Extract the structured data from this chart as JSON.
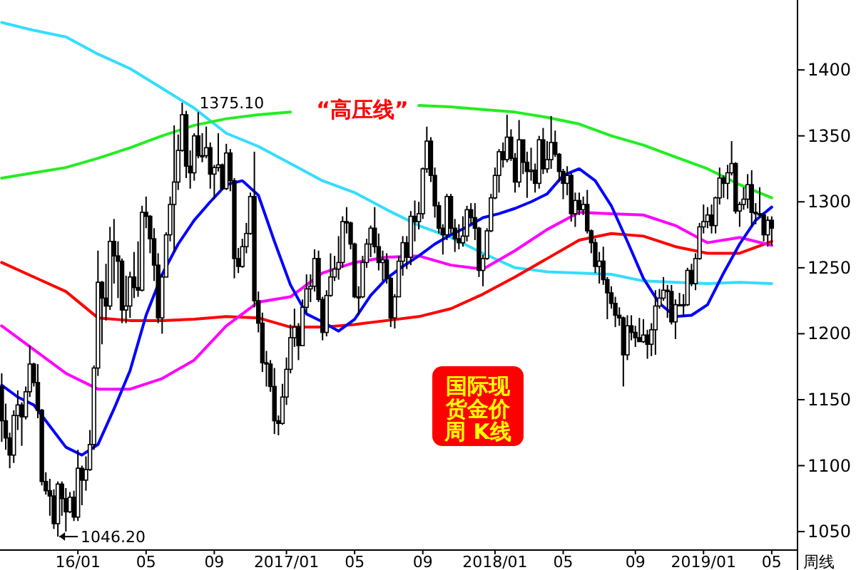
{
  "chart_data": {
    "type": "candlestick",
    "title": "国际现货金价周 K线",
    "annotations": [
      {
        "text": "1375.10",
        "x": "2016-07-08",
        "y": 1375.1
      },
      {
        "text": "1046.20",
        "x": "2015-12-04",
        "y": 1046.2
      },
      "“高压线”",
      "周线"
    ],
    "x": [
      "2015-08-28",
      "2015-09-04",
      "2015-09-11",
      "2015-09-18",
      "2015-09-25",
      "2015-10-02",
      "2015-10-09",
      "2015-10-16",
      "2015-10-23",
      "2015-10-30",
      "2015-11-06",
      "2015-11-13",
      "2015-11-20",
      "2015-11-27",
      "2015-12-04",
      "2015-12-11",
      "2015-12-18",
      "2015-12-25",
      "2016-01-01",
      "2016-01-08",
      "2016-01-15",
      "2016-01-22",
      "2016-01-29",
      "2016-02-05",
      "2016-02-12",
      "2016-02-19",
      "2016-02-26",
      "2016-03-04",
      "2016-03-11",
      "2016-03-18",
      "2016-03-25",
      "2016-04-01",
      "2016-04-08",
      "2016-04-15",
      "2016-04-22",
      "2016-04-29",
      "2016-05-06",
      "2016-05-13",
      "2016-05-20",
      "2016-05-27",
      "2016-06-03",
      "2016-06-10",
      "2016-06-17",
      "2016-06-24",
      "2016-07-01",
      "2016-07-08",
      "2016-07-15",
      "2016-07-22",
      "2016-07-29",
      "2016-08-05",
      "2016-08-12",
      "2016-08-19",
      "2016-08-26",
      "2016-09-02",
      "2016-09-09",
      "2016-09-16",
      "2016-09-23",
      "2016-09-30",
      "2016-10-07",
      "2016-10-14",
      "2016-10-21",
      "2016-10-28",
      "2016-11-04",
      "2016-11-11",
      "2016-11-18",
      "2016-11-25",
      "2016-12-02",
      "2016-12-09",
      "2016-12-16",
      "2016-12-23",
      "2016-12-30",
      "2017-01-06",
      "2017-01-13",
      "2017-01-20",
      "2017-01-27",
      "2017-02-03",
      "2017-02-10",
      "2017-02-17",
      "2017-02-24",
      "2017-03-03",
      "2017-03-10",
      "2017-03-17",
      "2017-03-24",
      "2017-03-31",
      "2017-04-07",
      "2017-04-14",
      "2017-04-21",
      "2017-04-28",
      "2017-05-05",
      "2017-05-12",
      "2017-05-19",
      "2017-05-26",
      "2017-06-02",
      "2017-06-09",
      "2017-06-16",
      "2017-06-23",
      "2017-06-30",
      "2017-07-07",
      "2017-07-14",
      "2017-07-21",
      "2017-07-28",
      "2017-08-04",
      "2017-08-11",
      "2017-08-18",
      "2017-08-25",
      "2017-09-01",
      "2017-09-08",
      "2017-09-15",
      "2017-09-22",
      "2017-09-29",
      "2017-10-06",
      "2017-10-13",
      "2017-10-20",
      "2017-10-27",
      "2017-11-03",
      "2017-11-10",
      "2017-11-17",
      "2017-11-24",
      "2017-12-01",
      "2017-12-08",
      "2017-12-15",
      "2017-12-22",
      "2017-12-29",
      "2018-01-05",
      "2018-01-12",
      "2018-01-19",
      "2018-01-26",
      "2018-02-02",
      "2018-02-09",
      "2018-02-16",
      "2018-02-23",
      "2018-03-02",
      "2018-03-09",
      "2018-03-16",
      "2018-03-23",
      "2018-03-30",
      "2018-04-06",
      "2018-04-13",
      "2018-04-20",
      "2018-04-27",
      "2018-05-04",
      "2018-05-11",
      "2018-05-18",
      "2018-05-25",
      "2018-06-01",
      "2018-06-08",
      "2018-06-15",
      "2018-06-22",
      "2018-06-29",
      "2018-07-06",
      "2018-07-13",
      "2018-07-20",
      "2018-07-27",
      "2018-08-03",
      "2018-08-10",
      "2018-08-17",
      "2018-08-24",
      "2018-08-31",
      "2018-09-07",
      "2018-09-14",
      "2018-09-21",
      "2018-09-28",
      "2018-10-05",
      "2018-10-12",
      "2018-10-19",
      "2018-10-26",
      "2018-11-02",
      "2018-11-09",
      "2018-11-16",
      "2018-11-23",
      "2018-11-30",
      "2018-12-07",
      "2018-12-14",
      "2018-12-21",
      "2018-12-28",
      "2019-01-04",
      "2019-01-11",
      "2019-01-18",
      "2019-01-25",
      "2019-02-01",
      "2019-02-08",
      "2019-02-15",
      "2019-02-22",
      "2019-03-01",
      "2019-03-08",
      "2019-03-15",
      "2019-03-22",
      "2019-03-29",
      "2019-04-05",
      "2019-04-12",
      "2019-04-19",
      "2019-04-26",
      "2019-05-03"
    ],
    "ohlc": [
      [
        1160,
        1170,
        1118,
        1134
      ],
      [
        1134,
        1147,
        1112,
        1121
      ],
      [
        1121,
        1125,
        1098,
        1108
      ],
      [
        1108,
        1142,
        1102,
        1138
      ],
      [
        1138,
        1157,
        1127,
        1146
      ],
      [
        1146,
        1148,
        1115,
        1137
      ],
      [
        1137,
        1160,
        1135,
        1156
      ],
      [
        1156,
        1191,
        1152,
        1177
      ],
      [
        1177,
        1178,
        1160,
        1163
      ],
      [
        1163,
        1177,
        1136,
        1142
      ],
      [
        1142,
        1143,
        1085,
        1088
      ],
      [
        1088,
        1095,
        1078,
        1081
      ],
      [
        1081,
        1090,
        1062,
        1077
      ],
      [
        1077,
        1082,
        1052,
        1056
      ],
      [
        1056,
        1088,
        1046.2,
        1086
      ],
      [
        1086,
        1088,
        1062,
        1075
      ],
      [
        1075,
        1083,
        1050,
        1065
      ],
      [
        1065,
        1080,
        1064,
        1076
      ],
      [
        1076,
        1081,
        1058,
        1061
      ],
      [
        1061,
        1112,
        1058,
        1098
      ],
      [
        1098,
        1100,
        1070,
        1089
      ],
      [
        1089,
        1107,
        1081,
        1097
      ],
      [
        1097,
        1127,
        1096,
        1116
      ],
      [
        1116,
        1176,
        1112,
        1174
      ],
      [
        1174,
        1263,
        1168,
        1239
      ],
      [
        1239,
        1240,
        1192,
        1227
      ],
      [
        1227,
        1253,
        1210,
        1221
      ],
      [
        1221,
        1281,
        1218,
        1270
      ],
      [
        1270,
        1287,
        1238,
        1259
      ],
      [
        1259,
        1270,
        1227,
        1255
      ],
      [
        1255,
        1257,
        1208,
        1218
      ],
      [
        1218,
        1244,
        1208,
        1221
      ],
      [
        1221,
        1247,
        1212,
        1243
      ],
      [
        1243,
        1262,
        1227,
        1235
      ],
      [
        1235,
        1270,
        1228,
        1233
      ],
      [
        1233,
        1297,
        1232,
        1292
      ],
      [
        1292,
        1304,
        1280,
        1289
      ],
      [
        1289,
        1290,
        1261,
        1272
      ],
      [
        1272,
        1280,
        1240,
        1252
      ],
      [
        1252,
        1261,
        1208,
        1212
      ],
      [
        1212,
        1245,
        1200,
        1243
      ],
      [
        1243,
        1277,
        1243,
        1275
      ],
      [
        1275,
        1304,
        1270,
        1298
      ],
      [
        1298,
        1358,
        1262,
        1315
      ],
      [
        1315,
        1351,
        1309,
        1339
      ],
      [
        1339,
        1375.1,
        1338,
        1366
      ],
      [
        1366,
        1369,
        1318,
        1327
      ],
      [
        1327,
        1339,
        1310,
        1322
      ],
      [
        1322,
        1352,
        1316,
        1350
      ],
      [
        1350,
        1368,
        1333,
        1335
      ],
      [
        1335,
        1352,
        1330,
        1335
      ],
      [
        1335,
        1357,
        1333,
        1341
      ],
      [
        1341,
        1345,
        1310,
        1321
      ],
      [
        1321,
        1328,
        1302,
        1326
      ],
      [
        1326,
        1352,
        1323,
        1328
      ],
      [
        1328,
        1329,
        1309,
        1310
      ],
      [
        1310,
        1344,
        1309,
        1337
      ],
      [
        1337,
        1340,
        1308,
        1316
      ],
      [
        1316,
        1318,
        1242,
        1257
      ],
      [
        1257,
        1265,
        1246,
        1251
      ],
      [
        1251,
        1272,
        1250,
        1266
      ],
      [
        1266,
        1284,
        1261,
        1276
      ],
      [
        1276,
        1307,
        1275,
        1304
      ],
      [
        1304,
        1338,
        1220,
        1225
      ],
      [
        1225,
        1232,
        1201,
        1208
      ],
      [
        1208,
        1216,
        1171,
        1178
      ],
      [
        1178,
        1187,
        1160,
        1177
      ],
      [
        1177,
        1180,
        1156,
        1160
      ],
      [
        1160,
        1174,
        1124,
        1134
      ],
      [
        1134,
        1138,
        1123,
        1132
      ],
      [
        1132,
        1162,
        1131,
        1152
      ],
      [
        1152,
        1182,
        1146,
        1173
      ],
      [
        1173,
        1207,
        1170,
        1197
      ],
      [
        1197,
        1219,
        1190,
        1205
      ],
      [
        1205,
        1208,
        1180,
        1191
      ],
      [
        1191,
        1226,
        1191,
        1220
      ],
      [
        1220,
        1245,
        1216,
        1234
      ],
      [
        1234,
        1245,
        1224,
        1236
      ],
      [
        1236,
        1264,
        1232,
        1257
      ],
      [
        1257,
        1263,
        1224,
        1226
      ],
      [
        1226,
        1228,
        1195,
        1201
      ],
      [
        1201,
        1233,
        1198,
        1229
      ],
      [
        1229,
        1261,
        1228,
        1243
      ],
      [
        1243,
        1259,
        1240,
        1249
      ],
      [
        1249,
        1274,
        1241,
        1254
      ],
      [
        1254,
        1289,
        1250,
        1285
      ],
      [
        1285,
        1296,
        1276,
        1284
      ],
      [
        1284,
        1285,
        1264,
        1268
      ],
      [
        1268,
        1269,
        1227,
        1228
      ],
      [
        1228,
        1236,
        1214,
        1228
      ],
      [
        1228,
        1259,
        1227,
        1254
      ],
      [
        1254,
        1272,
        1250,
        1268
      ],
      [
        1268,
        1282,
        1258,
        1280
      ],
      [
        1280,
        1296,
        1261,
        1266
      ],
      [
        1266,
        1276,
        1248,
        1254
      ],
      [
        1254,
        1263,
        1240,
        1256
      ],
      [
        1256,
        1261,
        1238,
        1242
      ],
      [
        1242,
        1243,
        1205,
        1212
      ],
      [
        1212,
        1230,
        1204,
        1228
      ],
      [
        1228,
        1259,
        1228,
        1255
      ],
      [
        1255,
        1274,
        1244,
        1269
      ],
      [
        1269,
        1274,
        1249,
        1258
      ],
      [
        1258,
        1293,
        1252,
        1289
      ],
      [
        1289,
        1301,
        1270,
        1285
      ],
      [
        1285,
        1300,
        1279,
        1291
      ],
      [
        1291,
        1326,
        1287,
        1325
      ],
      [
        1325,
        1357,
        1322,
        1346
      ],
      [
        1346,
        1349,
        1315,
        1320
      ],
      [
        1320,
        1326,
        1288,
        1297
      ],
      [
        1297,
        1300,
        1276,
        1280
      ],
      [
        1280,
        1283,
        1260,
        1275
      ],
      [
        1275,
        1306,
        1271,
        1304
      ],
      [
        1304,
        1306,
        1276,
        1280
      ],
      [
        1280,
        1287,
        1262,
        1272
      ],
      [
        1272,
        1283,
        1264,
        1269
      ],
      [
        1269,
        1289,
        1266,
        1274
      ],
      [
        1274,
        1297,
        1270,
        1294
      ],
      [
        1294,
        1299,
        1283,
        1288
      ],
      [
        1288,
        1299,
        1271,
        1280
      ],
      [
        1280,
        1281,
        1243,
        1248
      ],
      [
        1248,
        1260,
        1236,
        1257
      ],
      [
        1257,
        1280,
        1256,
        1278
      ],
      [
        1278,
        1306,
        1277,
        1303
      ],
      [
        1303,
        1326,
        1302,
        1320
      ],
      [
        1320,
        1340,
        1307,
        1338
      ],
      [
        1338,
        1345,
        1326,
        1332
      ],
      [
        1332,
        1366,
        1330,
        1349
      ],
      [
        1349,
        1355,
        1331,
        1333
      ],
      [
        1333,
        1337,
        1307,
        1315
      ],
      [
        1315,
        1362,
        1311,
        1347
      ],
      [
        1347,
        1347,
        1321,
        1330
      ],
      [
        1330,
        1338,
        1303,
        1323
      ],
      [
        1323,
        1341,
        1316,
        1324
      ],
      [
        1324,
        1329,
        1307,
        1314
      ],
      [
        1314,
        1350,
        1310,
        1347
      ],
      [
        1347,
        1356,
        1321,
        1325
      ],
      [
        1325,
        1346,
        1322,
        1332
      ],
      [
        1332,
        1365,
        1325,
        1345
      ],
      [
        1345,
        1354,
        1334,
        1336
      ],
      [
        1336,
        1337,
        1315,
        1323
      ],
      [
        1323,
        1325,
        1302,
        1314
      ],
      [
        1314,
        1327,
        1305,
        1320
      ],
      [
        1320,
        1322,
        1285,
        1291
      ],
      [
        1291,
        1307,
        1281,
        1301
      ],
      [
        1301,
        1307,
        1290,
        1294
      ],
      [
        1294,
        1304,
        1290,
        1298
      ],
      [
        1298,
        1309,
        1276,
        1278
      ],
      [
        1278,
        1279,
        1261,
        1269
      ],
      [
        1269,
        1272,
        1246,
        1251
      ],
      [
        1251,
        1262,
        1238,
        1255
      ],
      [
        1255,
        1266,
        1237,
        1241
      ],
      [
        1241,
        1243,
        1211,
        1231
      ],
      [
        1231,
        1236,
        1219,
        1223
      ],
      [
        1223,
        1228,
        1205,
        1214
      ],
      [
        1214,
        1220,
        1206,
        1212
      ],
      [
        1212,
        1213,
        1160,
        1184
      ],
      [
        1184,
        1214,
        1180,
        1206
      ],
      [
        1206,
        1214,
        1195,
        1201
      ],
      [
        1201,
        1206,
        1190,
        1197
      ],
      [
        1197,
        1212,
        1194,
        1194
      ],
      [
        1194,
        1211,
        1193,
        1199
      ],
      [
        1199,
        1203,
        1181,
        1192
      ],
      [
        1192,
        1208,
        1183,
        1203
      ],
      [
        1203,
        1233,
        1184,
        1221
      ],
      [
        1221,
        1234,
        1219,
        1227
      ],
      [
        1227,
        1243,
        1225,
        1233
      ],
      [
        1233,
        1237,
        1212,
        1232
      ],
      [
        1232,
        1237,
        1207,
        1209
      ],
      [
        1209,
        1226,
        1196,
        1222
      ],
      [
        1222,
        1231,
        1221,
        1222
      ],
      [
        1222,
        1230,
        1213,
        1222
      ],
      [
        1222,
        1250,
        1221,
        1248
      ],
      [
        1248,
        1253,
        1236,
        1238
      ],
      [
        1238,
        1261,
        1233,
        1257
      ],
      [
        1257,
        1284,
        1256,
        1281
      ],
      [
        1281,
        1298,
        1276,
        1285
      ],
      [
        1285,
        1296,
        1280,
        1290
      ],
      [
        1290,
        1298,
        1276,
        1282
      ],
      [
        1282,
        1304,
        1276,
        1303
      ],
      [
        1303,
        1326,
        1298,
        1318
      ],
      [
        1318,
        1320,
        1303,
        1314
      ],
      [
        1314,
        1328,
        1302,
        1322
      ],
      [
        1322,
        1346,
        1320,
        1329
      ],
      [
        1329,
        1330,
        1291,
        1293
      ],
      [
        1293,
        1300,
        1281,
        1298
      ],
      [
        1298,
        1311,
        1294,
        1302
      ],
      [
        1302,
        1321,
        1295,
        1313
      ],
      [
        1313,
        1324,
        1281,
        1292
      ],
      [
        1292,
        1299,
        1283,
        1291
      ],
      [
        1291,
        1311,
        1288,
        1290
      ],
      [
        1290,
        1292,
        1270,
        1275
      ],
      [
        1275,
        1289,
        1266,
        1286
      ],
      [
        1286,
        1289,
        1267,
        1280
      ]
    ],
    "series": [
      {
        "type": "line",
        "color": "#33ddff",
        "x": [
          "2015-08-28",
          "2015-10-23",
          "2015-12-18",
          "2016-02-12",
          "2016-04-08",
          "2016-06-03",
          "2016-07-29",
          "2016-09-23",
          "2016-11-18",
          "2017-01-13",
          "2017-03-10",
          "2017-05-05",
          "2017-06-30",
          "2017-08-25",
          "2017-10-20",
          "2017-12-15",
          "2018-02-09",
          "2018-04-06",
          "2018-06-01",
          "2018-07-27",
          "2018-09-21",
          "2018-11-16",
          "2019-01-11",
          "2019-03-08",
          "2019-05-03"
        ],
        "values": [
          1436,
          1430,
          1425,
          1412,
          1401,
          1386,
          1371,
          1352,
          1342,
          1329,
          1316,
          1307,
          1294,
          1282,
          1273,
          1261,
          1250,
          1247,
          1246,
          1245,
          1240,
          1239,
          1238,
          1239,
          1238
        ]
      },
      {
        "type": "line",
        "color": "#22ee22",
        "x": [
          "2015-08-28",
          "2015-10-23",
          "2015-12-18",
          "2016-02-12",
          "2016-04-08",
          "2016-06-03",
          "2016-07-29",
          "2016-09-23",
          "2016-11-18",
          "2017-01-13",
          "2017-03-10",
          "2017-05-05",
          "2017-06-30",
          "2017-08-25",
          "2017-10-20",
          "2017-12-15",
          "2018-02-09",
          "2018-04-06",
          "2018-06-01",
          "2018-07-27",
          "2018-09-21",
          "2018-11-16",
          "2019-01-11",
          "2019-03-08",
          "2019-05-03"
        ],
        "values": [
          1318,
          1322,
          1326,
          1333,
          1341,
          1350,
          1358,
          1363,
          1366,
          1368,
          null,
          null,
          null,
          1373,
          1372,
          1370,
          1368,
          1364,
          1359,
          1350,
          1343,
          1334,
          1325,
          1313,
          1303
        ]
      },
      {
        "type": "line",
        "color": "#ff0000",
        "x": [
          "2015-08-28",
          "2015-10-23",
          "2015-12-18",
          "2016-02-12",
          "2016-04-08",
          "2016-06-03",
          "2016-07-29",
          "2016-09-23",
          "2016-11-18",
          "2017-01-13",
          "2017-03-10",
          "2017-05-05",
          "2017-06-30",
          "2017-08-25",
          "2017-10-20",
          "2017-12-15",
          "2018-02-09",
          "2018-04-06",
          "2018-06-01",
          "2018-07-27",
          "2018-09-21",
          "2018-11-16",
          "2019-01-11",
          "2019-03-08",
          "2019-05-03"
        ],
        "values": [
          1254,
          1243,
          1232,
          1212,
          1210,
          1210,
          1211,
          1213,
          1212,
          1205,
          1205,
          1207,
          1210,
          1213,
          1219,
          1230,
          1243,
          1257,
          1271,
          1276,
          1274,
          1266,
          1261,
          1261,
          1270
        ]
      },
      {
        "type": "line",
        "color": "#ff00ff",
        "x": [
          "2015-08-28",
          "2015-10-23",
          "2015-12-18",
          "2016-02-12",
          "2016-04-08",
          "2016-06-03",
          "2016-07-29",
          "2016-09-23",
          "2016-11-18",
          "2017-01-13",
          "2017-03-10",
          "2017-05-05",
          "2017-06-30",
          "2017-08-25",
          "2017-10-20",
          "2017-12-15",
          "2018-02-09",
          "2018-04-06",
          "2018-06-01",
          "2018-07-27",
          "2018-09-21",
          "2018-11-16",
          "2019-01-11",
          "2019-03-08",
          "2019-05-03"
        ],
        "values": [
          1206,
          1188,
          1170,
          1158,
          1158,
          1166,
          1180,
          1206,
          1224,
          1228,
          1246,
          1254,
          1258,
          1259,
          1252,
          1249,
          1263,
          1279,
          1292,
          1291,
          1290,
          1282,
          1269,
          1273,
          1267
        ]
      },
      {
        "type": "line",
        "color": "#0000ff",
        "x": [
          "2015-08-28",
          "2015-09-25",
          "2015-10-23",
          "2015-11-20",
          "2015-12-18",
          "2016-01-15",
          "2016-02-12",
          "2016-03-11",
          "2016-04-08",
          "2016-05-06",
          "2016-06-03",
          "2016-07-01",
          "2016-07-29",
          "2016-08-26",
          "2016-09-23",
          "2016-10-21",
          "2016-11-18",
          "2016-12-16",
          "2017-01-13",
          "2017-02-10",
          "2017-03-10",
          "2017-04-07",
          "2017-05-05",
          "2017-06-02",
          "2017-06-30",
          "2017-07-28",
          "2017-08-25",
          "2017-09-22",
          "2017-10-20",
          "2017-11-17",
          "2017-12-15",
          "2018-01-12",
          "2018-02-09",
          "2018-03-09",
          "2018-04-06",
          "2018-05-04",
          "2018-06-01",
          "2018-06-29",
          "2018-07-27",
          "2018-08-24",
          "2018-09-21",
          "2018-10-19",
          "2018-11-16",
          "2018-12-14",
          "2019-01-11",
          "2019-02-08",
          "2019-03-08",
          "2019-04-05",
          "2019-05-03"
        ],
        "values": [
          1161,
          1152,
          1146,
          1130,
          1114,
          1108,
          1116,
          1143,
          1172,
          1214,
          1245,
          1268,
          1286,
          1300,
          1313,
          1316,
          1305,
          1270,
          1237,
          1215,
          1209,
          1202,
          1211,
          1229,
          1242,
          1251,
          1259,
          1268,
          1275,
          1281,
          1288,
          1291,
          1295,
          1300,
          1306,
          1320,
          1325,
          1316,
          1297,
          1270,
          1242,
          1223,
          1213,
          1214,
          1222,
          1246,
          1268,
          1286,
          1296
        ]
      }
    ],
    "xlim": [
      "2015-08-25",
      "2019-06-17"
    ],
    "xticks": [
      {
        "value": "2016-01-08",
        "label": "16/01"
      },
      {
        "value": "2016-05-06",
        "label": "05"
      },
      {
        "value": "2016-09-02",
        "label": "09"
      },
      {
        "value": "2017-01-06",
        "label": "2017/01"
      },
      {
        "value": "2017-05-05",
        "label": "05"
      },
      {
        "value": "2017-09-01",
        "label": "09"
      },
      {
        "value": "2018-01-05",
        "label": "2018/01"
      },
      {
        "value": "2018-05-04",
        "label": "05"
      },
      {
        "value": "2018-09-07",
        "label": "09"
      },
      {
        "value": "2019-01-04",
        "label": "2019/01"
      },
      {
        "value": "2019-05-03",
        "label": "05"
      }
    ],
    "ylim": [
      1036,
      1453
    ],
    "yticks": [
      1050,
      1100,
      1150,
      1200,
      1250,
      1300,
      1350,
      1400
    ]
  }
}
